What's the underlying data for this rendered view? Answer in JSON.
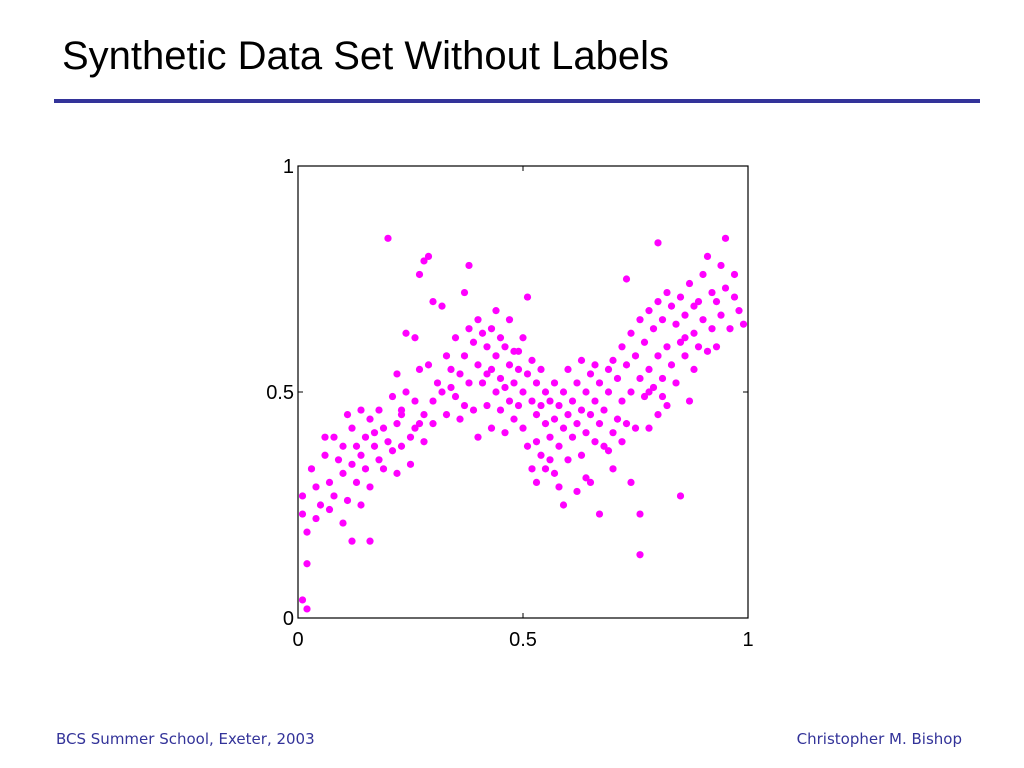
{
  "slide": {
    "title": "Synthetic Data Set Without Labels",
    "rule_color": "#333399"
  },
  "footer": {
    "left": "BCS Summer School, Exeter, 2003",
    "right": "Christopher M. Bishop",
    "color": "#333399"
  },
  "chart_data": {
    "type": "scatter",
    "title": "",
    "xlabel": "",
    "ylabel": "",
    "xlim": [
      0,
      1
    ],
    "ylim": [
      0,
      1
    ],
    "x_ticks": [
      0,
      0.5,
      1
    ],
    "y_ticks": [
      0,
      0.5,
      1
    ],
    "x_tick_labels": [
      "0",
      "0.5",
      "1"
    ],
    "y_tick_labels": [
      "0",
      "0.5",
      "1"
    ],
    "grid": false,
    "legend": "none",
    "marker_color": "#ff00ff",
    "series": [
      {
        "points": [
          [
            0.01,
            0.27
          ],
          [
            0.01,
            0.23
          ],
          [
            0.02,
            0.12
          ],
          [
            0.01,
            0.04
          ],
          [
            0.02,
            0.02
          ],
          [
            0.02,
            0.19
          ],
          [
            0.03,
            0.33
          ],
          [
            0.04,
            0.29
          ],
          [
            0.04,
            0.22
          ],
          [
            0.05,
            0.25
          ],
          [
            0.06,
            0.4
          ],
          [
            0.06,
            0.36
          ],
          [
            0.07,
            0.3
          ],
          [
            0.07,
            0.24
          ],
          [
            0.08,
            0.27
          ],
          [
            0.09,
            0.35
          ],
          [
            0.1,
            0.38
          ],
          [
            0.1,
            0.32
          ],
          [
            0.1,
            0.21
          ],
          [
            0.11,
            0.26
          ],
          [
            0.12,
            0.42
          ],
          [
            0.12,
            0.34
          ],
          [
            0.12,
            0.17
          ],
          [
            0.13,
            0.38
          ],
          [
            0.13,
            0.3
          ],
          [
            0.14,
            0.46
          ],
          [
            0.14,
            0.36
          ],
          [
            0.14,
            0.25
          ],
          [
            0.15,
            0.4
          ],
          [
            0.15,
            0.33
          ],
          [
            0.16,
            0.44
          ],
          [
            0.16,
            0.29
          ],
          [
            0.16,
            0.17
          ],
          [
            0.17,
            0.38
          ],
          [
            0.18,
            0.46
          ],
          [
            0.18,
            0.35
          ],
          [
            0.19,
            0.42
          ],
          [
            0.19,
            0.33
          ],
          [
            0.2,
            0.84
          ],
          [
            0.2,
            0.39
          ],
          [
            0.21,
            0.49
          ],
          [
            0.21,
            0.37
          ],
          [
            0.22,
            0.54
          ],
          [
            0.22,
            0.43
          ],
          [
            0.22,
            0.32
          ],
          [
            0.23,
            0.45
          ],
          [
            0.23,
            0.38
          ],
          [
            0.24,
            0.63
          ],
          [
            0.24,
            0.5
          ],
          [
            0.25,
            0.4
          ],
          [
            0.25,
            0.34
          ],
          [
            0.26,
            0.62
          ],
          [
            0.26,
            0.48
          ],
          [
            0.26,
            0.42
          ],
          [
            0.27,
            0.76
          ],
          [
            0.27,
            0.55
          ],
          [
            0.28,
            0.79
          ],
          [
            0.28,
            0.45
          ],
          [
            0.28,
            0.39
          ],
          [
            0.29,
            0.8
          ],
          [
            0.29,
            0.56
          ],
          [
            0.3,
            0.7
          ],
          [
            0.3,
            0.48
          ],
          [
            0.3,
            0.43
          ],
          [
            0.31,
            0.52
          ],
          [
            0.32,
            0.69
          ],
          [
            0.32,
            0.5
          ],
          [
            0.33,
            0.58
          ],
          [
            0.33,
            0.45
          ],
          [
            0.34,
            0.55
          ],
          [
            0.35,
            0.62
          ],
          [
            0.35,
            0.49
          ],
          [
            0.36,
            0.54
          ],
          [
            0.37,
            0.72
          ],
          [
            0.37,
            0.58
          ],
          [
            0.37,
            0.47
          ],
          [
            0.38,
            0.78
          ],
          [
            0.38,
            0.64
          ],
          [
            0.38,
            0.52
          ],
          [
            0.39,
            0.61
          ],
          [
            0.39,
            0.46
          ],
          [
            0.4,
            0.66
          ],
          [
            0.4,
            0.56
          ],
          [
            0.4,
            0.4
          ],
          [
            0.41,
            0.63
          ],
          [
            0.41,
            0.52
          ],
          [
            0.42,
            0.6
          ],
          [
            0.42,
            0.47
          ],
          [
            0.43,
            0.64
          ],
          [
            0.43,
            0.55
          ],
          [
            0.43,
            0.42
          ],
          [
            0.44,
            0.68
          ],
          [
            0.44,
            0.58
          ],
          [
            0.44,
            0.5
          ],
          [
            0.45,
            0.62
          ],
          [
            0.45,
            0.53
          ],
          [
            0.45,
            0.46
          ],
          [
            0.46,
            0.6
          ],
          [
            0.46,
            0.51
          ],
          [
            0.46,
            0.41
          ],
          [
            0.47,
            0.66
          ],
          [
            0.47,
            0.56
          ],
          [
            0.47,
            0.48
          ],
          [
            0.48,
            0.59
          ],
          [
            0.48,
            0.52
          ],
          [
            0.48,
            0.44
          ],
          [
            0.49,
            0.55
          ],
          [
            0.49,
            0.47
          ],
          [
            0.5,
            0.62
          ],
          [
            0.5,
            0.5
          ],
          [
            0.5,
            0.42
          ],
          [
            0.51,
            0.71
          ],
          [
            0.51,
            0.54
          ],
          [
            0.51,
            0.38
          ],
          [
            0.52,
            0.57
          ],
          [
            0.52,
            0.48
          ],
          [
            0.52,
            0.33
          ],
          [
            0.53,
            0.52
          ],
          [
            0.53,
            0.45
          ],
          [
            0.53,
            0.3
          ],
          [
            0.54,
            0.55
          ],
          [
            0.54,
            0.47
          ],
          [
            0.54,
            0.36
          ],
          [
            0.55,
            0.5
          ],
          [
            0.55,
            0.43
          ],
          [
            0.55,
            0.33
          ],
          [
            0.56,
            0.48
          ],
          [
            0.56,
            0.4
          ],
          [
            0.57,
            0.52
          ],
          [
            0.57,
            0.44
          ],
          [
            0.57,
            0.32
          ],
          [
            0.58,
            0.47
          ],
          [
            0.58,
            0.38
          ],
          [
            0.58,
            0.29
          ],
          [
            0.59,
            0.5
          ],
          [
            0.59,
            0.42
          ],
          [
            0.6,
            0.55
          ],
          [
            0.6,
            0.45
          ],
          [
            0.6,
            0.35
          ],
          [
            0.61,
            0.48
          ],
          [
            0.61,
            0.4
          ],
          [
            0.62,
            0.52
          ],
          [
            0.62,
            0.43
          ],
          [
            0.62,
            0.28
          ],
          [
            0.63,
            0.57
          ],
          [
            0.63,
            0.46
          ],
          [
            0.63,
            0.36
          ],
          [
            0.64,
            0.5
          ],
          [
            0.64,
            0.41
          ],
          [
            0.65,
            0.54
          ],
          [
            0.65,
            0.45
          ],
          [
            0.65,
            0.3
          ],
          [
            0.66,
            0.56
          ],
          [
            0.66,
            0.48
          ],
          [
            0.66,
            0.39
          ],
          [
            0.67,
            0.52
          ],
          [
            0.67,
            0.43
          ],
          [
            0.67,
            0.23
          ],
          [
            0.68,
            0.46
          ],
          [
            0.68,
            0.38
          ],
          [
            0.69,
            0.55
          ],
          [
            0.69,
            0.5
          ],
          [
            0.7,
            0.57
          ],
          [
            0.7,
            0.41
          ],
          [
            0.7,
            0.33
          ],
          [
            0.71,
            0.53
          ],
          [
            0.71,
            0.44
          ],
          [
            0.72,
            0.6
          ],
          [
            0.72,
            0.48
          ],
          [
            0.73,
            0.75
          ],
          [
            0.73,
            0.56
          ],
          [
            0.73,
            0.43
          ],
          [
            0.74,
            0.63
          ],
          [
            0.74,
            0.5
          ],
          [
            0.74,
            0.3
          ],
          [
            0.75,
            0.58
          ],
          [
            0.75,
            0.42
          ],
          [
            0.76,
            0.66
          ],
          [
            0.76,
            0.53
          ],
          [
            0.76,
            0.14
          ],
          [
            0.76,
            0.23
          ],
          [
            0.77,
            0.61
          ],
          [
            0.77,
            0.49
          ],
          [
            0.78,
            0.68
          ],
          [
            0.78,
            0.55
          ],
          [
            0.78,
            0.42
          ],
          [
            0.79,
            0.64
          ],
          [
            0.79,
            0.51
          ],
          [
            0.8,
            0.83
          ],
          [
            0.8,
            0.7
          ],
          [
            0.8,
            0.58
          ],
          [
            0.8,
            0.45
          ],
          [
            0.81,
            0.66
          ],
          [
            0.81,
            0.53
          ],
          [
            0.82,
            0.72
          ],
          [
            0.82,
            0.6
          ],
          [
            0.82,
            0.47
          ],
          [
            0.83,
            0.69
          ],
          [
            0.83,
            0.56
          ],
          [
            0.84,
            0.65
          ],
          [
            0.84,
            0.52
          ],
          [
            0.85,
            0.27
          ],
          [
            0.85,
            0.71
          ],
          [
            0.85,
            0.61
          ],
          [
            0.86,
            0.67
          ],
          [
            0.86,
            0.58
          ],
          [
            0.87,
            0.48
          ],
          [
            0.87,
            0.74
          ],
          [
            0.88,
            0.63
          ],
          [
            0.88,
            0.55
          ],
          [
            0.89,
            0.7
          ],
          [
            0.89,
            0.6
          ],
          [
            0.9,
            0.76
          ],
          [
            0.9,
            0.66
          ],
          [
            0.91,
            0.59
          ],
          [
            0.91,
            0.8
          ],
          [
            0.92,
            0.72
          ],
          [
            0.92,
            0.64
          ],
          [
            0.93,
            0.7
          ],
          [
            0.94,
            0.78
          ],
          [
            0.94,
            0.67
          ],
          [
            0.95,
            0.84
          ],
          [
            0.95,
            0.73
          ],
          [
            0.96,
            0.64
          ],
          [
            0.97,
            0.71
          ],
          [
            0.98,
            0.68
          ],
          [
            0.99,
            0.65
          ],
          [
            0.08,
            0.4
          ],
          [
            0.11,
            0.45
          ],
          [
            0.17,
            0.41
          ],
          [
            0.23,
            0.46
          ],
          [
            0.27,
            0.43
          ],
          [
            0.34,
            0.51
          ],
          [
            0.36,
            0.44
          ],
          [
            0.42,
            0.54
          ],
          [
            0.49,
            0.59
          ],
          [
            0.53,
            0.39
          ],
          [
            0.56,
            0.35
          ],
          [
            0.59,
            0.25
          ],
          [
            0.64,
            0.31
          ],
          [
            0.69,
            0.37
          ],
          [
            0.72,
            0.39
          ],
          [
            0.78,
            0.5
          ],
          [
            0.81,
            0.49
          ],
          [
            0.86,
            0.62
          ],
          [
            0.88,
            0.69
          ],
          [
            0.93,
            0.6
          ],
          [
            0.97,
            0.76
          ]
        ]
      }
    ]
  }
}
